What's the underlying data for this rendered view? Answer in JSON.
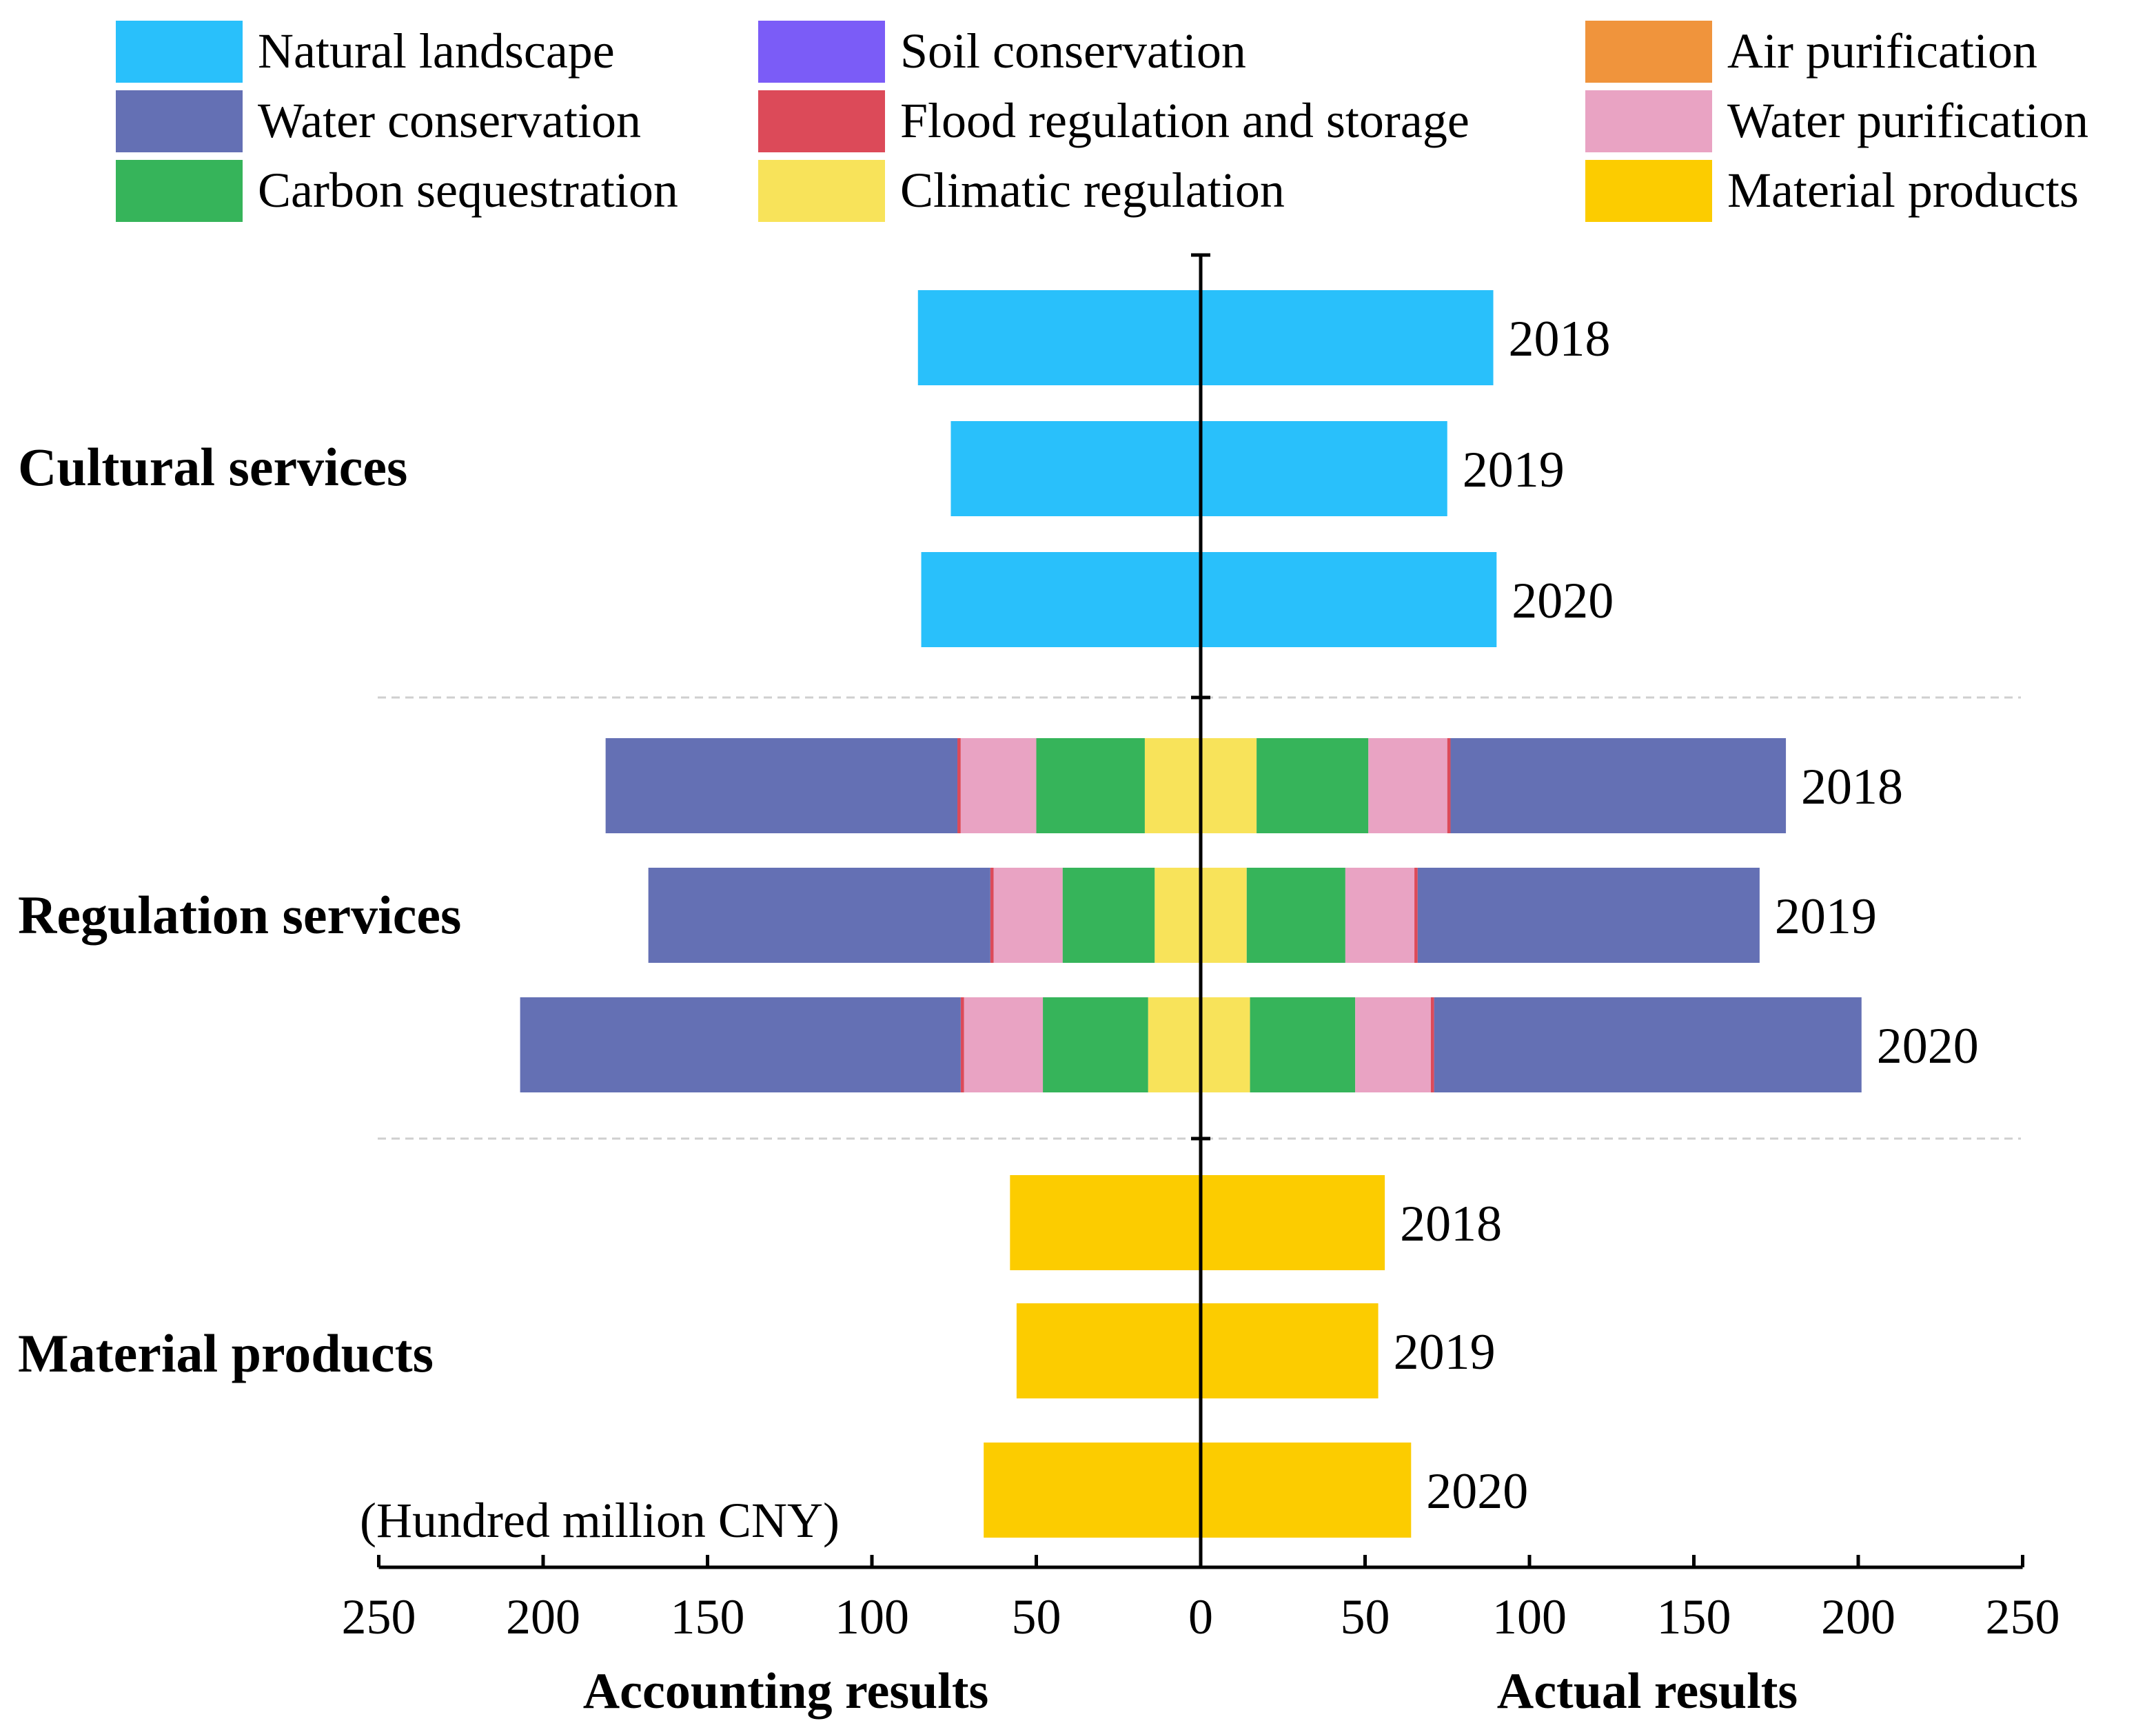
{
  "chart_data": {
    "type": "bar",
    "orientation": "horizontal-diverging",
    "unit_label": "(Hundred million CNY)",
    "left_axis_label": "Accounting results",
    "right_axis_label": "Actual results",
    "x_ticks": [
      250,
      200,
      150,
      100,
      50,
      0,
      50,
      100,
      150,
      200,
      250
    ],
    "xlim": [
      -250,
      250
    ],
    "legend": [
      {
        "name": "Natural landscape",
        "color": "#29C0FB"
      },
      {
        "name": "Soil conservation",
        "color": "#7B5CF7"
      },
      {
        "name": "Air purification",
        "color": "#F0943C"
      },
      {
        "name": "Water conservation",
        "color": "#6470B4"
      },
      {
        "name": "Flood regulation and storage",
        "color": "#DC4A59"
      },
      {
        "name": "Water purification",
        "color": "#E9A3C3"
      },
      {
        "name": "Carbon sequestration",
        "color": "#36B45A"
      },
      {
        "name": "Climatic regulation",
        "color": "#F8E35A"
      },
      {
        "name": "Material products",
        "color": "#FCCC00"
      }
    ],
    "groups": [
      {
        "name": "Cultural services",
        "bars": [
          {
            "year": "2018",
            "accounting": [
              {
                "series": "Natural landscape",
                "value": 86
              }
            ],
            "actual": [
              {
                "series": "Natural landscape",
                "value": 89
              }
            ]
          },
          {
            "year": "2019",
            "accounting": [
              {
                "series": "Natural landscape",
                "value": 76
              }
            ],
            "actual": [
              {
                "series": "Natural landscape",
                "value": 75
              }
            ]
          },
          {
            "year": "2020",
            "accounting": [
              {
                "series": "Natural landscape",
                "value": 85
              }
            ],
            "actual": [
              {
                "series": "Natural landscape",
                "value": 90
              }
            ]
          }
        ]
      },
      {
        "name": "Regulation services",
        "bars": [
          {
            "year": "2018",
            "accounting": [
              {
                "series": "Climatic regulation",
                "value": 17
              },
              {
                "series": "Carbon sequestration",
                "value": 33
              },
              {
                "series": "Water purification",
                "value": 23
              },
              {
                "series": "Flood regulation and storage",
                "value": 1
              },
              {
                "series": "Water conservation",
                "value": 107
              }
            ],
            "actual": [
              {
                "series": "Climatic regulation",
                "value": 17
              },
              {
                "series": "Carbon sequestration",
                "value": 34
              },
              {
                "series": "Water purification",
                "value": 24
              },
              {
                "series": "Flood regulation and storage",
                "value": 1
              },
              {
                "series": "Water conservation",
                "value": 102
              }
            ]
          },
          {
            "year": "2019",
            "accounting": [
              {
                "series": "Climatic regulation",
                "value": 14
              },
              {
                "series": "Carbon sequestration",
                "value": 28
              },
              {
                "series": "Water purification",
                "value": 21
              },
              {
                "series": "Flood regulation and storage",
                "value": 1
              },
              {
                "series": "Water conservation",
                "value": 104
              }
            ],
            "actual": [
              {
                "series": "Climatic regulation",
                "value": 14
              },
              {
                "series": "Carbon sequestration",
                "value": 30
              },
              {
                "series": "Water purification",
                "value": 21
              },
              {
                "series": "Flood regulation and storage",
                "value": 1
              },
              {
                "series": "Water conservation",
                "value": 104
              }
            ]
          },
          {
            "year": "2020",
            "accounting": [
              {
                "series": "Climatic regulation",
                "value": 16
              },
              {
                "series": "Carbon sequestration",
                "value": 32
              },
              {
                "series": "Water purification",
                "value": 24
              },
              {
                "series": "Flood regulation and storage",
                "value": 1
              },
              {
                "series": "Water conservation",
                "value": 134
              }
            ],
            "actual": [
              {
                "series": "Climatic regulation",
                "value": 15
              },
              {
                "series": "Carbon sequestration",
                "value": 32
              },
              {
                "series": "Water purification",
                "value": 23
              },
              {
                "series": "Flood regulation and storage",
                "value": 1
              },
              {
                "series": "Water conservation",
                "value": 130
              }
            ]
          }
        ]
      },
      {
        "name": "Material products",
        "bars": [
          {
            "year": "2018",
            "accounting": [
              {
                "series": "Material products",
                "value": 58
              }
            ],
            "actual": [
              {
                "series": "Material products",
                "value": 56
              }
            ]
          },
          {
            "year": "2019",
            "accounting": [
              {
                "series": "Material products",
                "value": 56
              }
            ],
            "actual": [
              {
                "series": "Material products",
                "value": 54
              }
            ]
          },
          {
            "year": "2020",
            "accounting": [
              {
                "series": "Material products",
                "value": 66
              }
            ],
            "actual": [
              {
                "series": "Material products",
                "value": 64
              }
            ]
          }
        ]
      }
    ]
  }
}
